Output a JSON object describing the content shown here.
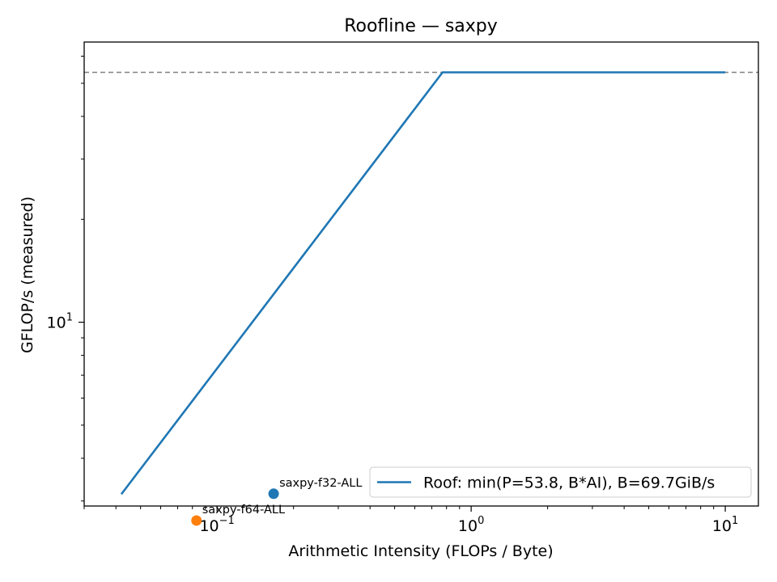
{
  "chart_data": {
    "type": "scatter",
    "title": "Roofline — saxpy",
    "xlabel": "Arithmetic Intensity (FLOPs / Byte)",
    "ylabel": "GFLOP/s (measured)",
    "xscale": "log",
    "yscale": "log",
    "xlim": [
      0.03,
      13.5
    ],
    "ylim": [
      2.9,
      66
    ],
    "x_ticks": [
      {
        "base": "10",
        "exp": "−1",
        "value": 0.1
      },
      {
        "base": "10",
        "exp": "0",
        "value": 1
      },
      {
        "base": "10",
        "exp": "1",
        "value": 10
      }
    ],
    "y_ticks": [
      {
        "base": "10",
        "exp": "1",
        "value": 10
      }
    ],
    "roof": {
      "name": "Roof: min(P=53.8, B*AI), B=69.7GiB/s",
      "color": "#1f77b4",
      "peak": 53.8,
      "x": [
        0.042,
        0.772,
        10
      ],
      "y": [
        3.14,
        53.8,
        53.8
      ]
    },
    "peak_line": {
      "value": 53.8,
      "color": "#808080",
      "style": "dashed"
    },
    "points": [
      {
        "label": "saxpy-f32-ALL",
        "x": 0.167,
        "y": 3.15,
        "color": "#1f77b4"
      },
      {
        "label": "saxpy-f64-ALL",
        "x": 0.083,
        "y": 2.63,
        "color": "#ff7f0e"
      }
    ],
    "legend": {
      "placement": "lower-right",
      "entries": [
        "Roof: min(P=53.8, B*AI), B=69.7GiB/s"
      ]
    },
    "grid": false
  }
}
